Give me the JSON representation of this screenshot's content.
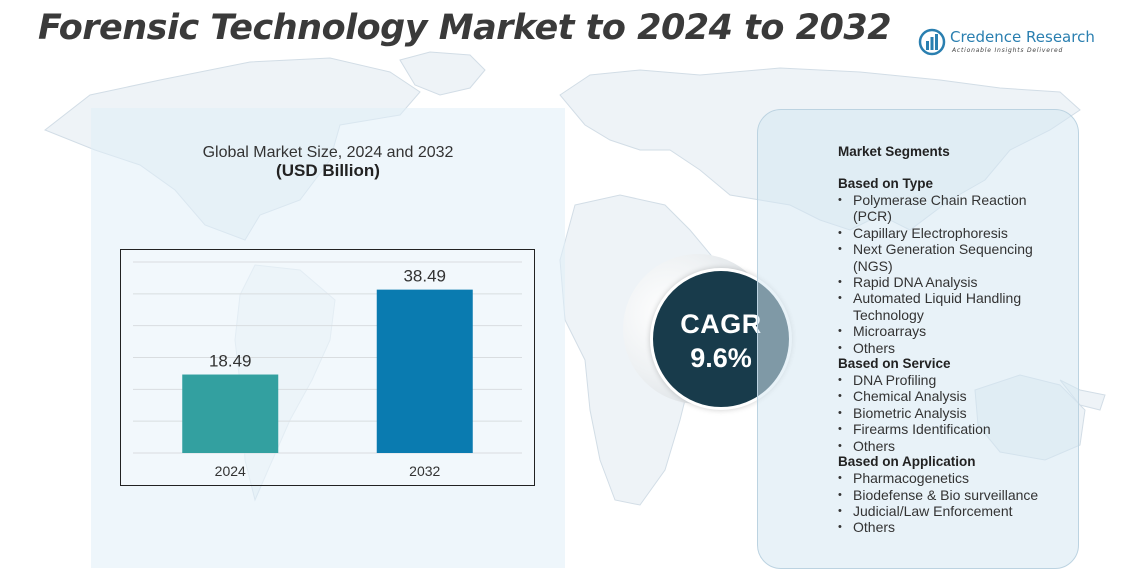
{
  "page_title": "Forensic Technology Market to 2024 to 2032",
  "logo": {
    "name": "Credence Research",
    "tagline": "Actionable Insights Delivered",
    "icon": "bar-chart-logo-icon",
    "color": "#2a7fb0"
  },
  "chart_data": {
    "type": "bar",
    "title": "Global Market Size, 2024 and 2032",
    "subtitle": "(USD Billion)",
    "categories": [
      "2024",
      "2032"
    ],
    "values": [
      18.49,
      38.49
    ],
    "data_labels": [
      "18.49",
      "38.49"
    ],
    "colors": [
      "#33a0a0",
      "#0a7bb0"
    ],
    "ylim": [
      0,
      45
    ],
    "grid": true,
    "legend": "none"
  },
  "cagr": {
    "label": "CAGR",
    "value": "9.6%",
    "color": "#183b4b"
  },
  "segments": {
    "title": "Market Segments",
    "groups": [
      {
        "title": "Based on Type",
        "items": [
          "Polymerase Chain Reaction (PCR)",
          "Capillary Electrophoresis",
          "Next Generation Sequencing (NGS)",
          "Rapid DNA Analysis",
          "Automated Liquid Handling Technology",
          "Microarrays",
          "Others"
        ]
      },
      {
        "title": "Based on Service",
        "items": [
          "DNA Profiling",
          "Chemical Analysis",
          "Biometric Analysis",
          "Firearms Identification",
          "Others"
        ]
      },
      {
        "title": "Based on Application",
        "items": [
          "Pharmacogenetics",
          "Biodefense & Bio surveillance",
          "Judicial/Law Enforcement",
          "Others"
        ]
      }
    ]
  }
}
